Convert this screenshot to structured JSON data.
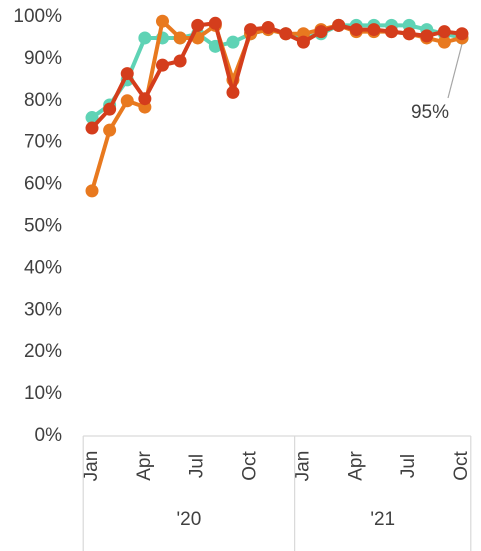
{
  "chart_data": {
    "type": "line",
    "categories": [
      "Jan",
      null,
      null,
      "Apr",
      null,
      null,
      "Jul",
      null,
      null,
      "Oct",
      null,
      null,
      "Jan",
      null,
      null,
      "Apr",
      null,
      null,
      "Jul",
      null,
      null,
      "Oct"
    ],
    "groups": [
      {
        "label": "'20",
        "count": 12
      },
      {
        "label": "'21",
        "count": 10
      }
    ],
    "series": [
      {
        "color": "#5fd3b5",
        "values": [
          76,
          79,
          85,
          95,
          95,
          95,
          96,
          93,
          94,
          96,
          97,
          96,
          95,
          96,
          98,
          98,
          98,
          98,
          98,
          97,
          96,
          95
        ]
      },
      {
        "color": "#e8791f",
        "values": [
          58.5,
          73,
          80,
          78.5,
          99,
          95,
          95,
          98,
          85,
          96,
          97,
          96,
          96,
          97,
          98,
          96.5,
          96.5,
          96.5,
          96,
          95,
          94,
          95
        ]
      },
      {
        "color": "#d43d1c",
        "values": [
          73.5,
          78,
          86.5,
          80.5,
          88.5,
          89.5,
          98,
          98.5,
          82,
          97,
          97.5,
          96,
          94,
          96.5,
          98,
          97,
          97,
          96.5,
          96,
          95.5,
          96.5,
          96
        ]
      }
    ],
    "annotation": "95%",
    "ylim": [
      0,
      100
    ],
    "yticks": [
      {
        "value": 0,
        "label": "0%"
      },
      {
        "value": 10,
        "label": "10%"
      },
      {
        "value": 20,
        "label": "20%"
      },
      {
        "value": 30,
        "label": "30%"
      },
      {
        "value": 40,
        "label": "40%"
      },
      {
        "value": 50,
        "label": "50%"
      },
      {
        "value": 60,
        "label": "60%"
      },
      {
        "value": 70,
        "label": "70%"
      },
      {
        "value": 80,
        "label": "80%"
      },
      {
        "value": 90,
        "label": "90%"
      },
      {
        "value": 100,
        "label": "100%"
      }
    ],
    "grid": false
  }
}
